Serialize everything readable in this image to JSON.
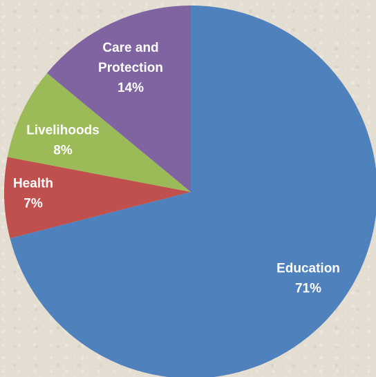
{
  "chart_data": {
    "type": "pie",
    "title": "",
    "start_angle_deg": 0,
    "direction": "clockwise",
    "legend": "none",
    "slices": [
      {
        "label": "Education",
        "value": 71,
        "display": [
          "Education",
          "71%"
        ],
        "color": "#4f81bd"
      },
      {
        "label": "Health",
        "value": 7,
        "display": [
          "Health",
          "7%"
        ],
        "color": "#c0504d"
      },
      {
        "label": "Livelihoods",
        "value": 8,
        "display": [
          "Livelihoods",
          "8%"
        ],
        "color": "#9bbb59"
      },
      {
        "label": "Care and Protection",
        "value": 14,
        "display": [
          "Care and",
          "Protection",
          "14%"
        ],
        "color": "#8064a2"
      }
    ]
  }
}
